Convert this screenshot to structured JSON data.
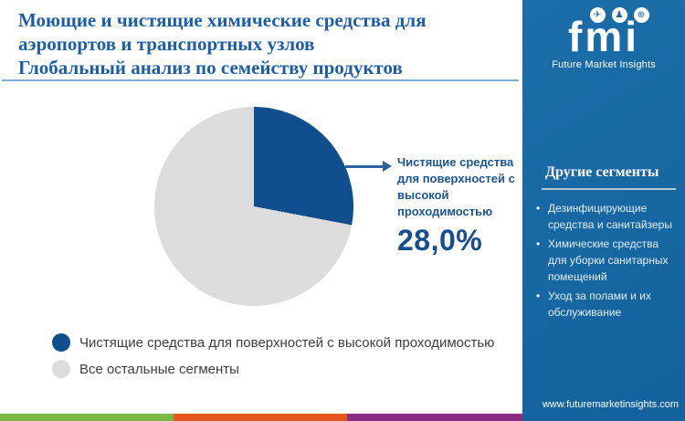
{
  "header": {
    "title_lines": [
      "Моющие и чистящие химические средства для",
      "аэропортов и транспортных узлов",
      "Глобальный анализ по семейству продуктов"
    ],
    "title_color": "#1d5da5"
  },
  "chart_data": {
    "type": "pie",
    "title": "Моющие и чистящие химические средства для аэропортов и транспортных узлов — Глобальный анализ по семейству продуктов",
    "segments": [
      {
        "label": "Чистящие средства для поверхностей с высокой проходимостью",
        "value": 28.0,
        "color": "#114e8d"
      },
      {
        "label": "Все остальные сегменты",
        "value": 72.0,
        "color": "#dcdcdc"
      }
    ],
    "start_angle_deg": 0,
    "direction": "clockwise",
    "annotation": {
      "label": "Чистящие средства для поверхностей с высокой проходимостью",
      "value_label": "28,0%"
    },
    "legend_position": "bottom-left"
  },
  "sidebar": {
    "background_color": "#1568a5",
    "logo": {
      "text": "fmi",
      "tagline": "Future Market Insights",
      "icons": [
        {
          "name": "paper-plane-icon",
          "glyph": "✈"
        },
        {
          "name": "person-icon",
          "glyph": "♟"
        },
        {
          "name": "globe-icon",
          "glyph": "⊕"
        }
      ]
    },
    "other_segments": {
      "heading": "Другие сегменты",
      "items": [
        "Дезинфицирующие средства и санитайзеры",
        "Химические средства для уборки санитарных помещений",
        "Уход за полами и их обслуживание"
      ]
    },
    "website": "www.futuremarketinsights.com"
  },
  "footer": {
    "stripe_colors": [
      "#7cb844",
      "#e4561c",
      "#8b2e83"
    ]
  }
}
